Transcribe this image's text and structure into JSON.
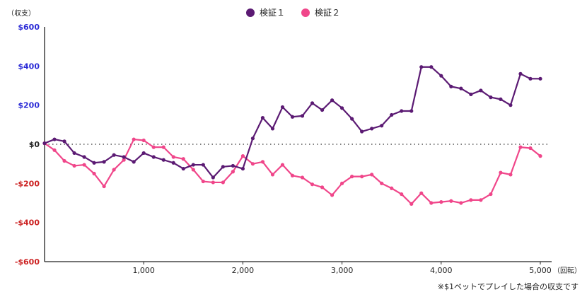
{
  "chart_data": {
    "type": "line",
    "y_unit_label": "（収支）",
    "x_unit_label": "（回転）",
    "note": "※$1ベットでプレイした場合の収支です",
    "ylim": [
      -600,
      600
    ],
    "xlim": [
      0,
      5100
    ],
    "y_ticks": [
      {
        "value": 600,
        "label": "$600",
        "color": "#2b2bd6"
      },
      {
        "value": 400,
        "label": "$400",
        "color": "#2b2bd6"
      },
      {
        "value": 200,
        "label": "$200",
        "color": "#2b2bd6"
      },
      {
        "value": 0,
        "label": "$0",
        "color": "#222222"
      },
      {
        "value": -200,
        "label": "-$200",
        "color": "#cc2222"
      },
      {
        "value": -400,
        "label": "-$400",
        "color": "#cc2222"
      },
      {
        "value": -600,
        "label": "-$600",
        "color": "#cc2222"
      }
    ],
    "x_ticks": [
      {
        "value": 1000,
        "label": "1,000"
      },
      {
        "value": 2000,
        "label": "2,000"
      },
      {
        "value": 3000,
        "label": "3,000"
      },
      {
        "value": 4000,
        "label": "4,000"
      },
      {
        "value": 5000,
        "label": "5,000"
      }
    ],
    "legend_position": "top-center",
    "zero_line": "dotted",
    "x": [
      0,
      100,
      200,
      300,
      400,
      500,
      600,
      700,
      800,
      900,
      1000,
      1100,
      1200,
      1300,
      1400,
      1500,
      1600,
      1700,
      1800,
      1900,
      2000,
      2100,
      2200,
      2300,
      2400,
      2500,
      2600,
      2700,
      2800,
      2900,
      3000,
      3100,
      3200,
      3300,
      3400,
      3500,
      3600,
      3700,
      3800,
      3900,
      4000,
      4100,
      4200,
      4300,
      4400,
      4500,
      4600,
      4700,
      4800,
      4900,
      5000
    ],
    "series": [
      {
        "name": "検証１",
        "color": "#5b1a73",
        "values": [
          5,
          25,
          15,
          -45,
          -65,
          -95,
          -90,
          -55,
          -65,
          -90,
          -45,
          -65,
          -80,
          -95,
          -125,
          -105,
          -105,
          -170,
          -115,
          -110,
          -125,
          30,
          135,
          80,
          190,
          140,
          145,
          210,
          175,
          225,
          185,
          130,
          65,
          80,
          95,
          150,
          170,
          170,
          395,
          395,
          350,
          295,
          285,
          255,
          275,
          240,
          230,
          200,
          360,
          335,
          335
        ]
      },
      {
        "name": "検証２",
        "color": "#f0468a",
        "values": [
          5,
          -30,
          -85,
          -110,
          -105,
          -150,
          -215,
          -130,
          -80,
          25,
          20,
          -15,
          -15,
          -65,
          -75,
          -130,
          -190,
          -195,
          -195,
          -140,
          -60,
          -100,
          -90,
          -155,
          -105,
          -160,
          -170,
          -205,
          -220,
          -260,
          -200,
          -165,
          -165,
          -155,
          -200,
          -225,
          -255,
          -305,
          -250,
          -300,
          -295,
          -290,
          -300,
          -285,
          -285,
          -255,
          -145,
          -155,
          -15,
          -20,
          -60
        ]
      }
    ]
  }
}
